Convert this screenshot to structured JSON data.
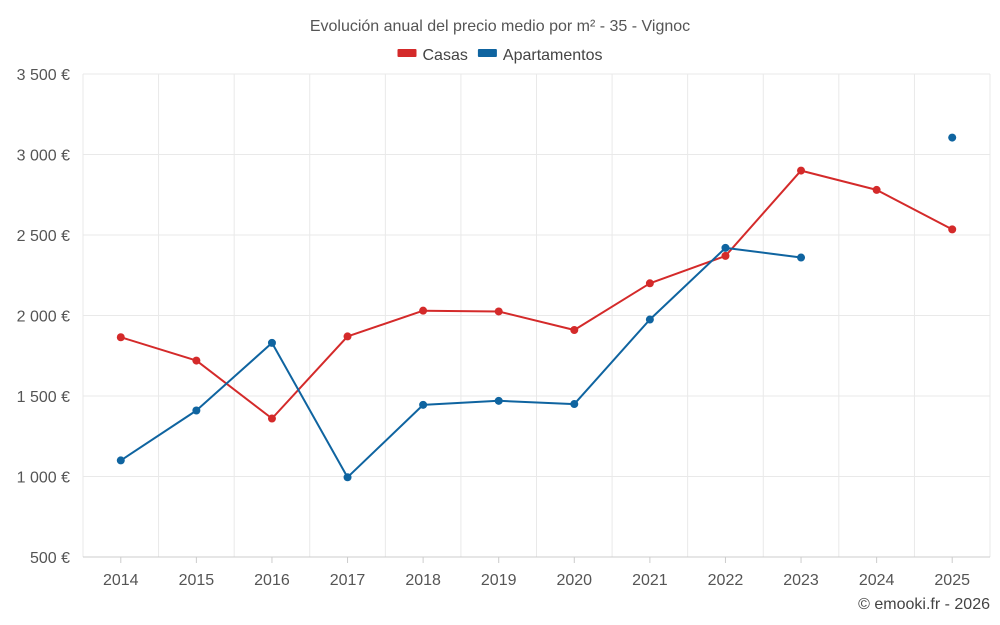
{
  "chart_data": {
    "type": "line",
    "title": "Evolución anual del precio medio por m² - 35 - Vignoc",
    "categories": [
      "2014",
      "2015",
      "2016",
      "2017",
      "2018",
      "2019",
      "2020",
      "2021",
      "2022",
      "2023",
      "2024",
      "2025"
    ],
    "ylim": [
      500,
      3500
    ],
    "yticks": [
      500,
      1000,
      1500,
      2000,
      2500,
      3000,
      3500
    ],
    "ytick_labels": [
      "500 €",
      "1 000 €",
      "1 500 €",
      "2 000 €",
      "2 500 €",
      "3 000 €",
      "3 500 €"
    ],
    "grid": true,
    "legend_position": "top-center",
    "series": [
      {
        "name": "Casas",
        "color": "#d42a2a",
        "values": [
          1865,
          1720,
          1360,
          1870,
          2030,
          2025,
          1910,
          2200,
          2370,
          2900,
          2780,
          2535
        ]
      },
      {
        "name": "Apartamentos",
        "color": "#0f64a0",
        "values": [
          1100,
          1410,
          1830,
          995,
          1445,
          1470,
          1450,
          1975,
          2420,
          2360,
          null,
          3105
        ]
      }
    ],
    "credit": "© emooki.fr - 2026"
  }
}
